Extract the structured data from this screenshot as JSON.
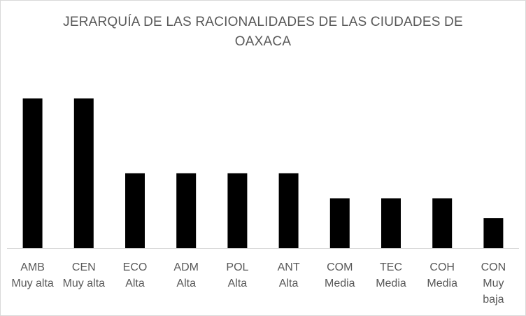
{
  "chart_data": {
    "type": "bar",
    "title_lines": [
      "JERARQUÍA DE LAS RACIONALIDADES DE LAS CIUDADES DE",
      "OAXACA"
    ],
    "categories": [
      [
        "AMB",
        "Muy alta"
      ],
      [
        "CEN",
        "Muy alta"
      ],
      [
        "ECO",
        "Alta"
      ],
      [
        "ADM",
        "Alta"
      ],
      [
        "POL",
        "Alta"
      ],
      [
        "ANT",
        "Alta"
      ],
      [
        "COM",
        "Media"
      ],
      [
        "TEC",
        "Media"
      ],
      [
        "COH",
        "Media"
      ],
      [
        "CON",
        "Muy",
        "baja"
      ]
    ],
    "values": [
      6,
      6,
      3,
      3,
      3,
      3,
      2,
      2,
      2,
      1.2
    ],
    "ylim": [
      0,
      7
    ],
    "xlabel": "",
    "ylabel": "",
    "grid": false,
    "legend": "none",
    "colors": {
      "bar": "#000000",
      "axis": "#d9d9d9",
      "text": "#595959"
    }
  }
}
